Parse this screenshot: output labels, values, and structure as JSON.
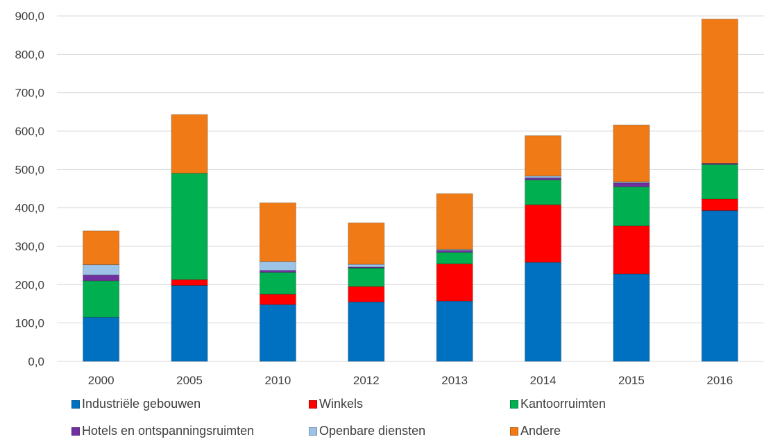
{
  "chart_data": {
    "type": "bar",
    "stacked": true,
    "categories": [
      "2000",
      "2005",
      "2010",
      "2012",
      "2013",
      "2014",
      "2015",
      "2016"
    ],
    "series": [
      {
        "name": "Industriële gebouwen",
        "color": "#0070C0",
        "values": [
          115,
          198,
          148,
          155,
          157,
          258,
          228,
          393
        ]
      },
      {
        "name": "Winkels",
        "color": "#FF0000",
        "values": [
          0,
          15,
          27,
          40,
          97,
          150,
          125,
          30
        ]
      },
      {
        "name": "Kantoorruimten",
        "color": "#00B050",
        "values": [
          95,
          277,
          57,
          48,
          30,
          65,
          102,
          90
        ]
      },
      {
        "name": "Hotels en ontspanningsruimten",
        "color": "#7030A0",
        "values": [
          15,
          0,
          5,
          3,
          5,
          5,
          10,
          3
        ]
      },
      {
        "name": "Openbare diensten",
        "color": "#9DC3E6",
        "values": [
          27,
          0,
          23,
          7,
          3,
          5,
          3,
          0
        ]
      },
      {
        "name": "Andere",
        "color": "#F07B16",
        "values": [
          88,
          153,
          153,
          108,
          145,
          105,
          148,
          376
        ]
      }
    ],
    "ylim": [
      0,
      900
    ],
    "yticks": [
      "0,0",
      "100,0",
      "200,0",
      "300,0",
      "400,0",
      "500,0",
      "600,0",
      "700,0",
      "800,0",
      "900,0"
    ],
    "title": "",
    "xlabel": "",
    "ylabel": "",
    "grid": true,
    "legend_position": "bottom"
  }
}
